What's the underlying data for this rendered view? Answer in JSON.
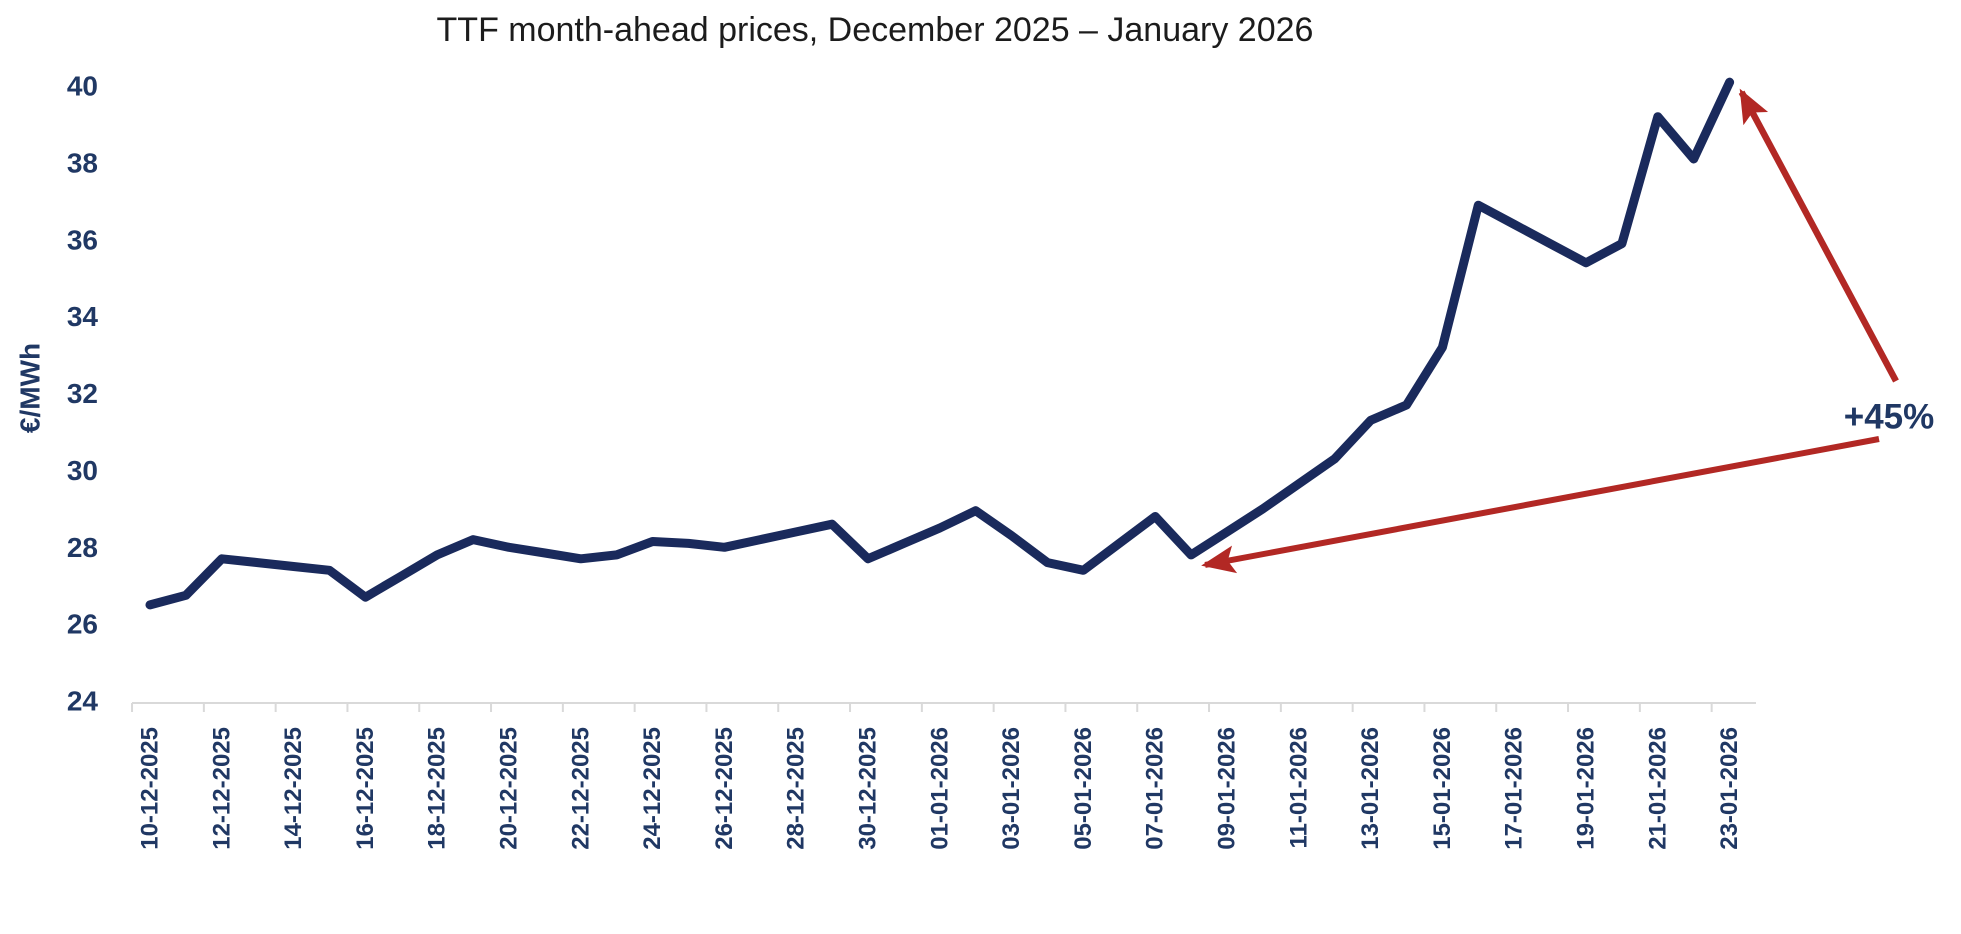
{
  "chart_data": {
    "type": "line",
    "title": "TTF month-ahead prices, December 2025 – January 2026",
    "ylabel": "€/MWh",
    "xlabel": "",
    "ylim": [
      24,
      40
    ],
    "yticks": [
      40,
      38,
      36,
      34,
      32,
      30,
      28,
      26,
      24
    ],
    "x_label_every": 2,
    "grid": false,
    "legend": "none",
    "x": [
      "10-12-2025",
      "11-12-2025",
      "12-12-2025",
      "13-12-2025",
      "14-12-2025",
      "15-12-2025",
      "16-12-2025",
      "17-12-2025",
      "18-12-2025",
      "19-12-2025",
      "20-12-2025",
      "21-12-2025",
      "22-12-2025",
      "23-12-2025",
      "24-12-2025",
      "25-12-2025",
      "26-12-2025",
      "27-12-2025",
      "28-12-2025",
      "29-12-2025",
      "30-12-2025",
      "31-12-2025",
      "01-01-2026",
      "02-01-2026",
      "03-01-2026",
      "04-01-2026",
      "05-01-2026",
      "06-01-2026",
      "07-01-2026",
      "08-01-2026",
      "09-01-2026",
      "10-01-2026",
      "11-01-2026",
      "12-01-2026",
      "13-01-2026",
      "14-01-2026",
      "15-01-2026",
      "16-01-2026",
      "17-01-2026",
      "18-01-2026",
      "19-01-2026",
      "20-01-2026",
      "21-01-2026",
      "22-01-2026",
      "23-01-2026"
    ],
    "series": [
      {
        "name": "TTF month-ahead price",
        "values": [
          26.5,
          26.75,
          27.7,
          27.6,
          27.5,
          27.4,
          26.7,
          27.25,
          27.8,
          28.2,
          28.0,
          27.85,
          27.7,
          27.8,
          28.15,
          28.1,
          28.0,
          28.2,
          28.4,
          28.6,
          27.7,
          28.1,
          28.5,
          28.95,
          28.3,
          27.6,
          27.4,
          28.1,
          28.8,
          27.8,
          28.4,
          29.0,
          29.65,
          30.3,
          31.3,
          31.7,
          33.2,
          36.9,
          36.4,
          35.9,
          35.4,
          35.9,
          39.2,
          38.1,
          40.1
        ]
      }
    ],
    "annotation": {
      "text": "+45%",
      "arrows": [
        {
          "points_to": "23-01-2026"
        },
        {
          "points_to": "08-01-2026"
        }
      ]
    }
  },
  "styles": {
    "line_color": "#1A2A5C",
    "label_color": "#203864",
    "annotation_red": "#B22824",
    "axis_color": "#D9D9D9",
    "title_color": "#1C1C1C",
    "background": "#FFFFFF"
  }
}
